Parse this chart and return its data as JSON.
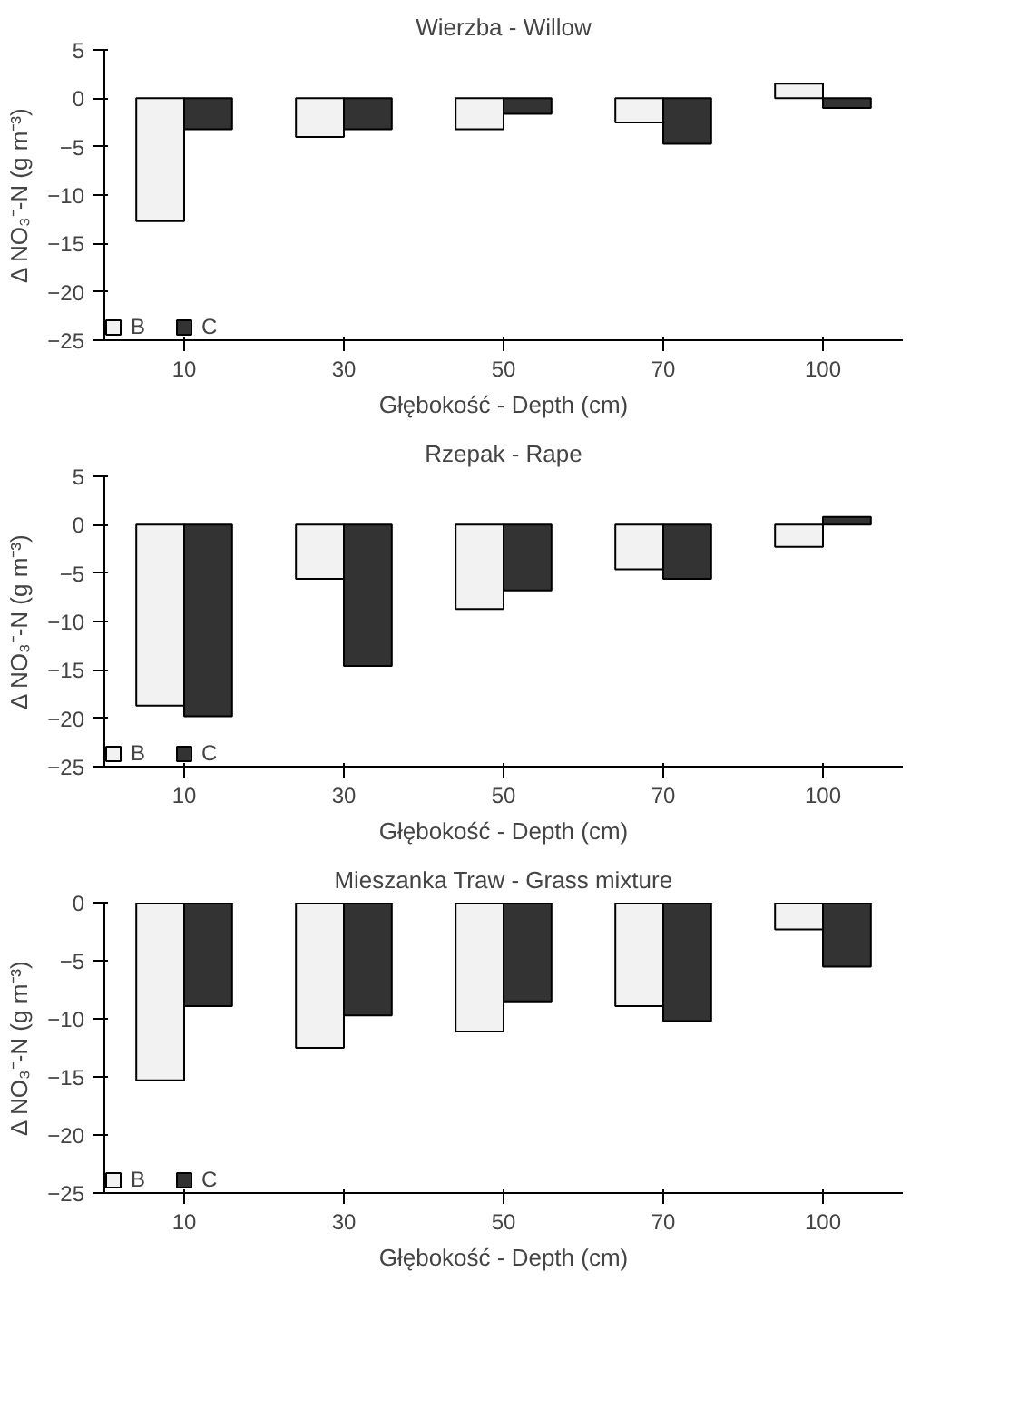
{
  "chart_data": [
    {
      "type": "bar",
      "title": "Wierzba - Willow",
      "xlabel": "Głębokość - Depth (cm)",
      "ylabel": "Δ NO₃⁻-N (g m⁻³)",
      "categories": [
        "10",
        "30",
        "50",
        "70",
        "100"
      ],
      "ylim": [
        -25,
        5
      ],
      "yticks": [
        -25,
        -20,
        -15,
        -10,
        -5,
        0,
        5
      ],
      "grid": false,
      "legend": "bottom left",
      "series": [
        {
          "name": "B",
          "color": "#f2f2f2",
          "values": [
            -12.7,
            -4.0,
            -3.2,
            -2.5,
            1.5
          ]
        },
        {
          "name": "C",
          "color": "#333333",
          "values": [
            -3.2,
            -3.2,
            -1.6,
            -4.7,
            -1.0
          ]
        }
      ]
    },
    {
      "type": "bar",
      "title": "Rzepak - Rape",
      "xlabel": "Głębokość - Depth (cm)",
      "ylabel": "Δ NO₃⁻-N (g m⁻³)",
      "categories": [
        "10",
        "30",
        "50",
        "70",
        "100"
      ],
      "ylim": [
        -25,
        5
      ],
      "yticks": [
        -25,
        -20,
        -15,
        -10,
        -5,
        0,
        5
      ],
      "grid": false,
      "legend": "bottom left",
      "series": [
        {
          "name": "B",
          "color": "#f2f2f2",
          "values": [
            -18.7,
            -5.6,
            -8.7,
            -4.6,
            -2.3
          ]
        },
        {
          "name": "C",
          "color": "#333333",
          "values": [
            -19.8,
            -14.6,
            -6.8,
            -5.6,
            0.8
          ]
        }
      ]
    },
    {
      "type": "bar",
      "title": "Mieszanka Traw - Grass mixture",
      "xlabel": "Głębokość - Depth (cm)",
      "ylabel": "Δ NO₃⁻-N (g m⁻³)",
      "categories": [
        "10",
        "30",
        "50",
        "70",
        "100"
      ],
      "ylim": [
        -25,
        0
      ],
      "yticks": [
        -25,
        -20,
        -15,
        -10,
        -5,
        0
      ],
      "grid": false,
      "legend": "bottom left",
      "series": [
        {
          "name": "B",
          "color": "#f2f2f2",
          "values": [
            -15.3,
            -12.5,
            -11.1,
            -8.9,
            -2.3
          ]
        },
        {
          "name": "C",
          "color": "#333333",
          "values": [
            -8.9,
            -9.7,
            -8.5,
            -10.2,
            -5.5
          ]
        }
      ]
    }
  ]
}
